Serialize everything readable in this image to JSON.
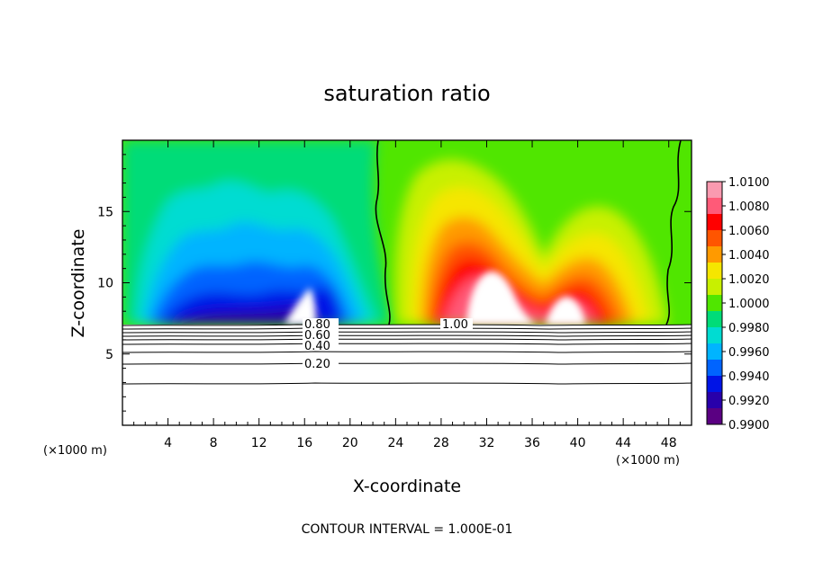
{
  "chart_data": {
    "type": "heatmap",
    "title": "saturation ratio",
    "xlabel": "X-coordinate",
    "ylabel": "Z-coordinate",
    "x_unit": "(×1000 m)",
    "xlim": [
      0,
      50
    ],
    "ylim": [
      0,
      20
    ],
    "x_ticks": [
      "4",
      "8",
      "12",
      "16",
      "20",
      "24",
      "28",
      "32",
      "36",
      "40",
      "44",
      "48"
    ],
    "y_ticks": [
      "5",
      "10",
      "15"
    ],
    "colorbar": {
      "labels": [
        "1.0100",
        "1.0080",
        "1.0060",
        "1.0040",
        "1.0020",
        "1.0000",
        "0.9980",
        "0.9960",
        "0.9940",
        "0.9920",
        "0.9900"
      ],
      "colors": [
        "#fa9ab0",
        "#ff5a78",
        "#ff0000",
        "#ff5500",
        "#ff9a00",
        "#f5e600",
        "#c8f000",
        "#50e600",
        "#00dc78",
        "#00dcd2",
        "#00b4ff",
        "#0064ff",
        "#0014e6",
        "#2800aa",
        "#5a0082"
      ]
    },
    "contour_labels": [
      "0.80",
      "0.60",
      "0.40",
      "0.20",
      "1.00"
    ],
    "contour_interval_text": "CONTOUR INTERVAL = 1.000E-01"
  }
}
